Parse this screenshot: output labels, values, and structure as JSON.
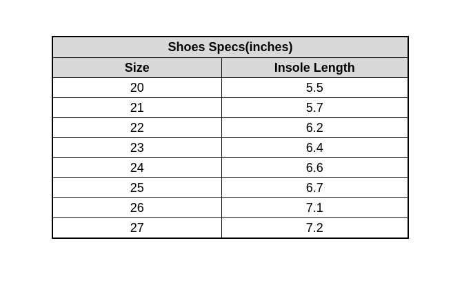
{
  "chart_data": {
    "type": "table",
    "title": "Shoes Specs(inches)",
    "columns": [
      "Size",
      "Insole Length"
    ],
    "rows": [
      [
        "20",
        "5.5"
      ],
      [
        "21",
        "5.7"
      ],
      [
        "22",
        "6.2"
      ],
      [
        "23",
        "6.4"
      ],
      [
        "24",
        "6.6"
      ],
      [
        "25",
        "6.7"
      ],
      [
        "26",
        "7.1"
      ],
      [
        "27",
        "7.2"
      ]
    ]
  },
  "colors": {
    "header_bg": "#d9d9d9",
    "border": "#000000"
  }
}
